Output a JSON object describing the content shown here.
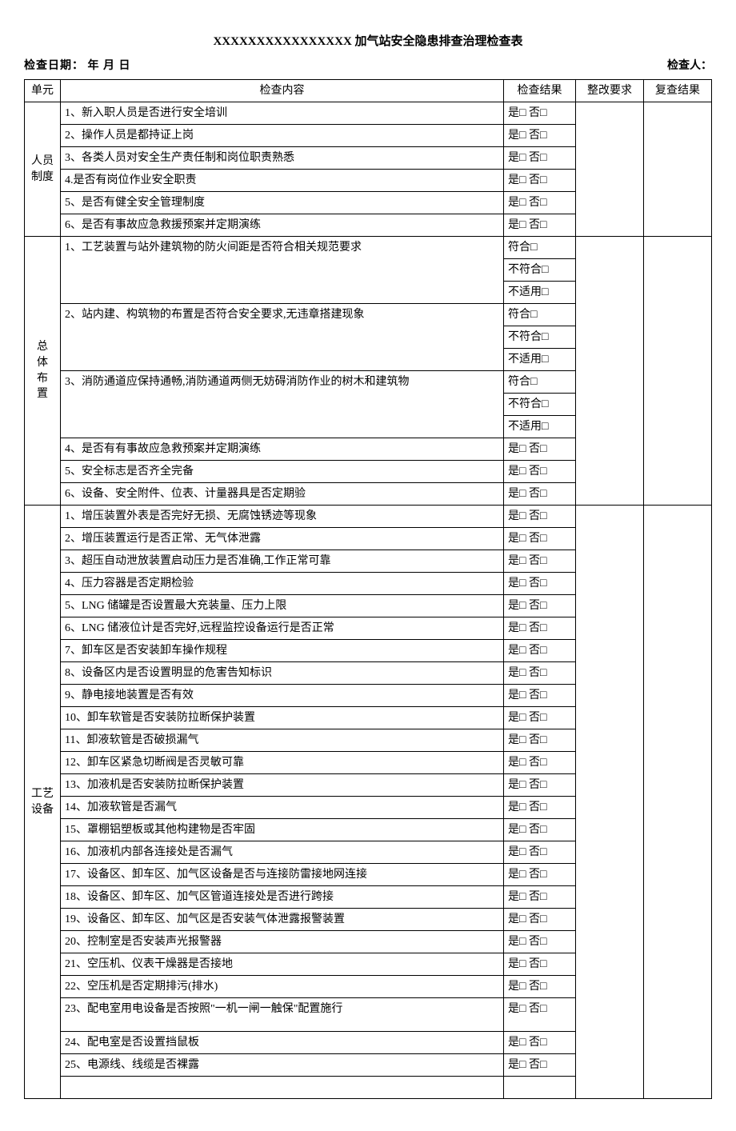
{
  "title": "XXXXXXXXXXXXXXXX 加气站安全隐患排查治理检查表",
  "header": {
    "date_label": "检查日期：    年    月    日",
    "inspector_label": "检查人："
  },
  "columns": {
    "unit": "单元",
    "content": "检查内容",
    "result": "检查结果",
    "request": "整改要求",
    "review": "复查结果"
  },
  "result_options": {
    "yes_no": "是□ 否□",
    "compliance": {
      "line1": "符合□",
      "line2": "不符合□",
      "line3": "不适用□"
    }
  },
  "sections": [
    {
      "unit": "人员制度",
      "unit_lines": [
        "人员",
        "制度"
      ],
      "rows": [
        {
          "content": "1、新入职人员是否进行安全培训",
          "result_type": "yes_no"
        },
        {
          "content": "2、操作人员是都持证上岗",
          "result_type": "yes_no"
        },
        {
          "content": "3、各类人员对安全生产责任制和岗位职责熟悉",
          "result_type": "yes_no"
        },
        {
          "content": "4.是否有岗位作业安全职责",
          "result_type": "yes_no"
        },
        {
          "content": "5、是否有健全安全管理制度",
          "result_type": "yes_no"
        },
        {
          "content": "6、是否有事故应急救援预案并定期演练",
          "result_type": "yes_no"
        }
      ]
    },
    {
      "unit": "总体布置",
      "unit_lines": [
        "总",
        "体",
        "布",
        "置"
      ],
      "rows": [
        {
          "content": "1、工艺装置与站外建筑物的防火间距是否符合相关规范要求",
          "result_type": "compliance"
        },
        {
          "content": "2、站内建、构筑物的布置是否符合安全要求,无违章搭建现象",
          "result_type": "compliance"
        },
        {
          "content": "3、消防通道应保持通畅,消防通道两侧无妨碍消防作业的树木和建筑物",
          "result_type": "compliance"
        },
        {
          "content": "4、是否有有事故应急救预案并定期演练",
          "result_type": "yes_no"
        },
        {
          "content": "5、安全标志是否齐全完备",
          "result_type": "yes_no"
        },
        {
          "content": "6、设备、安全附件、位表、计量器具是否定期验",
          "result_type": "yes_no"
        }
      ]
    },
    {
      "unit": "工艺设备",
      "unit_lines": [
        "工艺",
        "设备"
      ],
      "rows": [
        {
          "content": "1、增压装置外表是否完好无损、无腐蚀锈迹等现象",
          "result_type": "yes_no"
        },
        {
          "content": "2、增压装置运行是否正常、无气体泄露",
          "result_type": "yes_no"
        },
        {
          "content": "3、超压自动泄放装置启动压力是否准确,工作正常可靠",
          "result_type": "yes_no"
        },
        {
          "content": "4、压力容器是否定期检验",
          "result_type": "yes_no"
        },
        {
          "content": "5、LNG 储罐是否设置最大充装量、压力上限",
          "result_type": "yes_no"
        },
        {
          "content": "6、LNG 储液位计是否完好,远程监控设备运行是否正常",
          "result_type": "yes_no"
        },
        {
          "content": "7、卸车区是否安装卸车操作规程",
          "result_type": "yes_no"
        },
        {
          "content": "8、设备区内是否设置明显的危害告知标识",
          "result_type": "yes_no"
        },
        {
          "content": "9、静电接地装置是否有效",
          "result_type": "yes_no"
        },
        {
          "content": "10、卸车软管是否安装防拉断保护装置",
          "result_type": "yes_no"
        },
        {
          "content": "11、卸液软管是否破损漏气",
          "result_type": "yes_no"
        },
        {
          "content": "12、卸车区紧急切断阀是否灵敏可靠",
          "result_type": "yes_no"
        },
        {
          "content": "13、加液机是否安装防拉断保护装置",
          "result_type": "yes_no"
        },
        {
          "content": "14、加液软管是否漏气",
          "result_type": "yes_no"
        },
        {
          "content": "15、罩棚铝塑板或其他构建物是否牢固",
          "result_type": "yes_no"
        },
        {
          "content": "16、加液机内部各连接处是否漏气",
          "result_type": "yes_no"
        },
        {
          "content": "17、设备区、卸车区、加气区设备是否与连接防雷接地网连接",
          "result_type": "yes_no"
        },
        {
          "content": "18、设备区、卸车区、加气区管道连接处是否进行跨接",
          "result_type": "yes_no"
        },
        {
          "content": "19、设备区、卸车区、加气区是否安装气体泄露报警装置",
          "result_type": "yes_no"
        },
        {
          "content": "20、控制室是否安装声光报警器",
          "result_type": "yes_no"
        },
        {
          "content": "21、空压机、仪表干燥器是否接地",
          "result_type": "yes_no"
        },
        {
          "content": "22、空压机是否定期排污(排水)",
          "result_type": "yes_no"
        },
        {
          "content": "23、配电室用电设备是否按照\"一机一闸一触保\"配置施行",
          "result_type": "yes_no",
          "double_height": true
        },
        {
          "content": "24、配电室是否设置挡鼠板",
          "result_type": "yes_no"
        },
        {
          "content": "25、电源线、线缆是否裸露",
          "result_type": "yes_no",
          "trailing": true
        }
      ]
    }
  ]
}
